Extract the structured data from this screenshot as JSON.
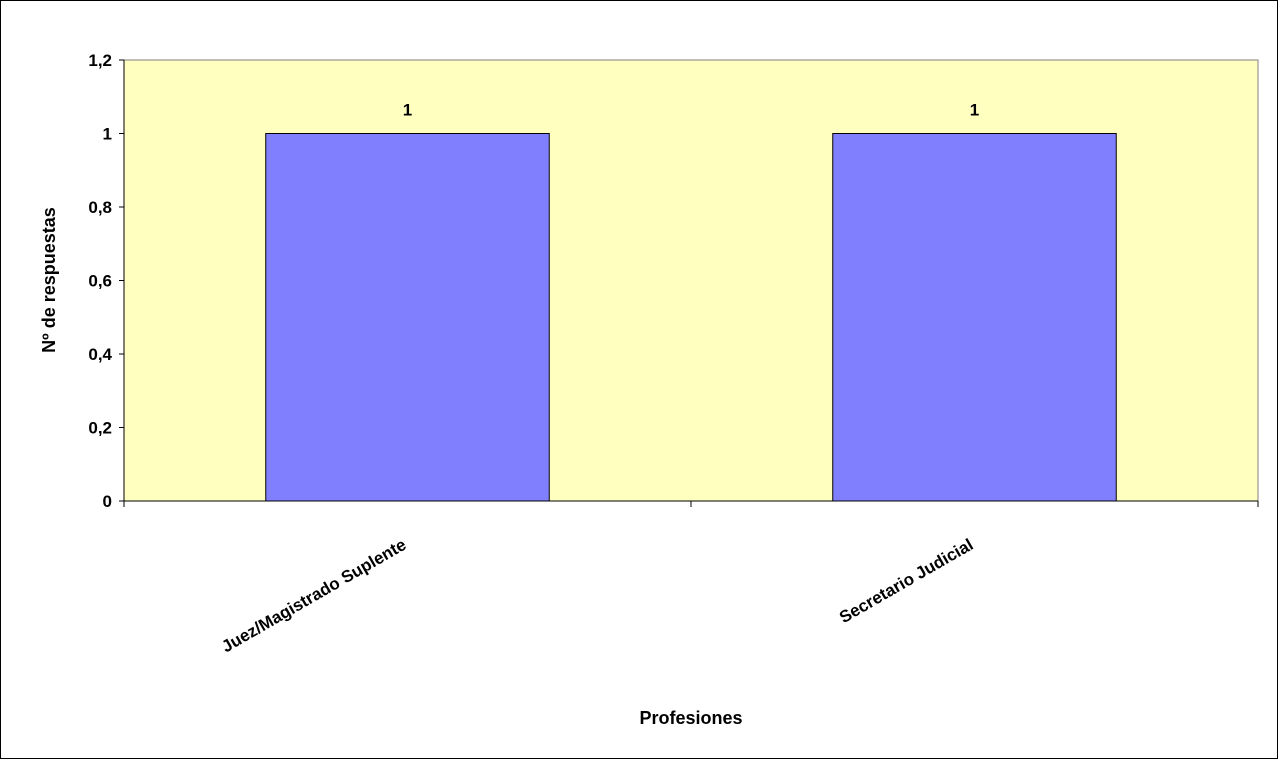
{
  "chart_data": {
    "type": "bar",
    "categories": [
      "Juez/Magistrado Suplente",
      "Secretario Judicial"
    ],
    "values": [
      1,
      1
    ],
    "data_labels": [
      "1",
      "1"
    ],
    "xlabel": "Profesiones",
    "ylabel": "Nº de respuestas",
    "ylim": [
      0,
      1.2
    ],
    "yticks": [
      0,
      0.2,
      0.4,
      0.6,
      0.8,
      1,
      1.2
    ],
    "ytick_labels": [
      "0",
      "0,2",
      "0,4",
      "0,6",
      "0,8",
      "1",
      "1,2"
    ],
    "grid": false,
    "legend": "none",
    "colors": {
      "plot_background": "#FFFFC0",
      "bar_fill": "#8080FF",
      "bar_stroke": "#000000",
      "frame": "#000000"
    }
  }
}
